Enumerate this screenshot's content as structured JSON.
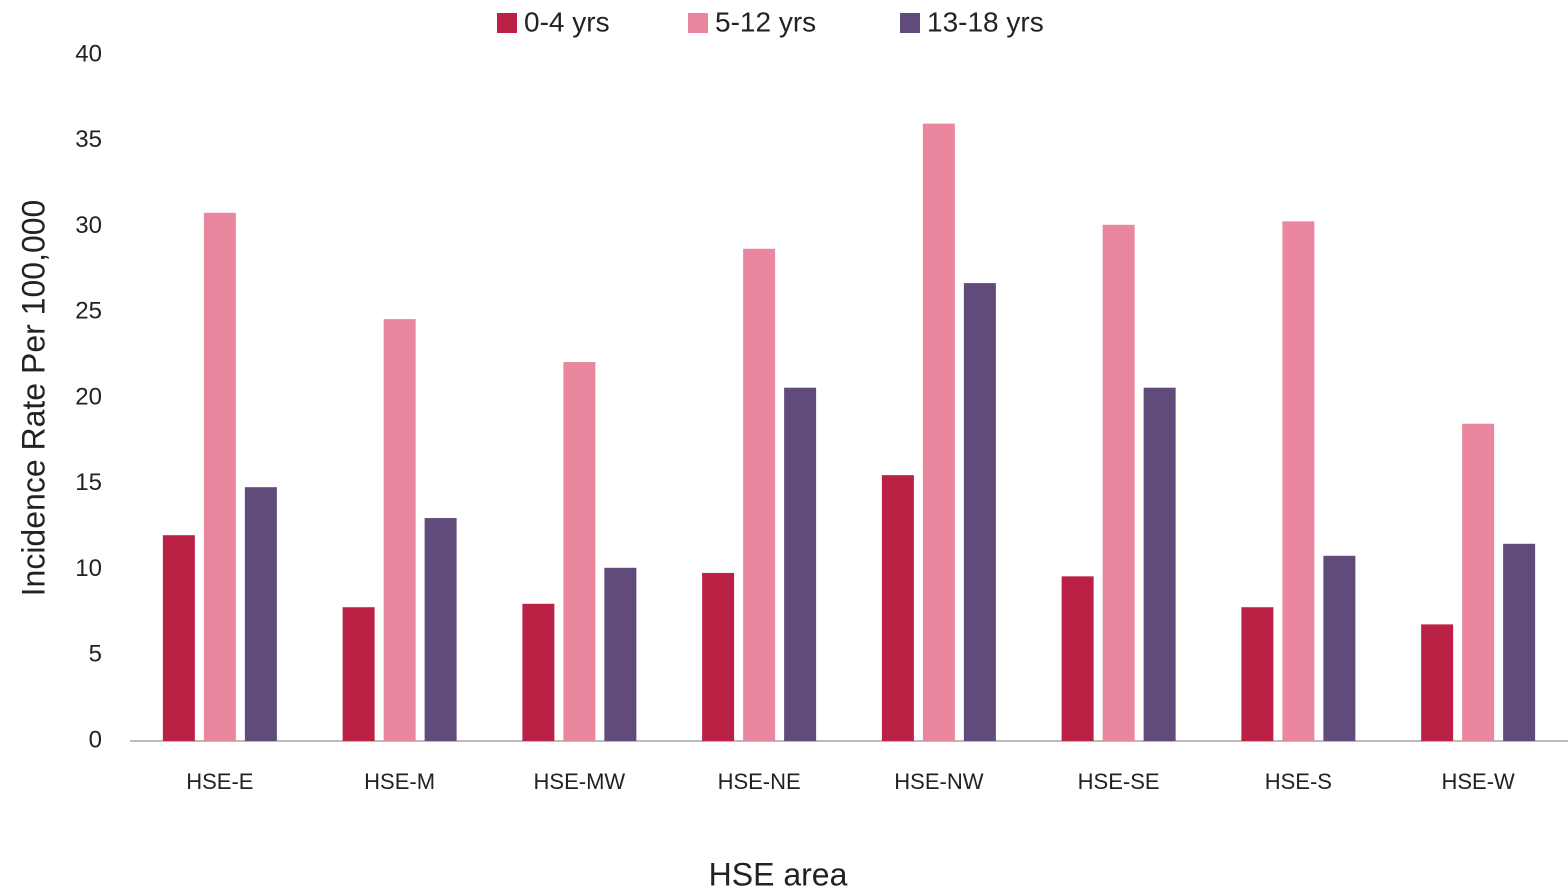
{
  "chart_data": {
    "type": "bar",
    "x_label": "HSE area",
    "y_label": "Incidence Rate Per 100,000",
    "categories": [
      "HSE-E",
      "HSE-M",
      "HSE-MW",
      "HSE-NE",
      "HSE-NW",
      "HSE-SE",
      "HSE-S",
      "HSE-W"
    ],
    "series": [
      {
        "name": "0-4 yrs",
        "color": "#bb2045",
        "values": [
          12,
          7.8,
          8.0,
          9.8,
          15.5,
          9.6,
          7.8,
          6.8
        ]
      },
      {
        "name": "5-12 yrs",
        "color": "#ea879f",
        "values": [
          30.8,
          24.6,
          22.1,
          28.7,
          36.0,
          30.1,
          30.3,
          18.5
        ]
      },
      {
        "name": "13-18 yrs",
        "color": "#604b7b",
        "values": [
          14.8,
          13.0,
          10.1,
          20.6,
          26.7,
          20.6,
          10.8,
          11.5
        ]
      }
    ],
    "ylim": [
      0,
      40
    ],
    "yticks": [
      0,
      5,
      10,
      15,
      20,
      25,
      30,
      35,
      40
    ],
    "grid": false,
    "legend": "top"
  }
}
